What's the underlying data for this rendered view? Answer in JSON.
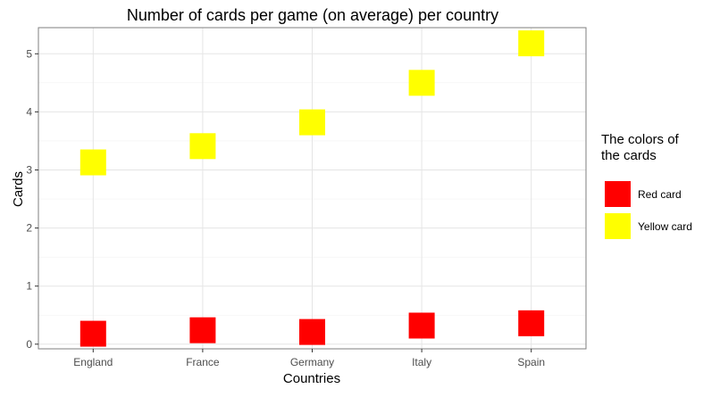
{
  "chart_data": {
    "type": "scatter",
    "title": "Number of cards per game (on average) per country",
    "xlabel": "Countries",
    "ylabel": "Cards",
    "categories": [
      "England",
      "France",
      "Germany",
      "Italy",
      "Spain"
    ],
    "ylim": [
      -0.08,
      5.45
    ],
    "yticks": [
      0,
      1,
      2,
      3,
      4,
      5
    ],
    "grid": true,
    "legend": {
      "title": "The colors of the cards",
      "title_lines": [
        "The colors of",
        "the cards"
      ],
      "position": "right"
    },
    "series": [
      {
        "name": "Red card",
        "color": "#ff0000",
        "values": [
          0.18,
          0.24,
          0.21,
          0.32,
          0.36
        ]
      },
      {
        "name": "Yellow card",
        "color": "#ffff00",
        "values": [
          3.13,
          3.41,
          3.82,
          4.5,
          5.18
        ]
      }
    ],
    "marker_shape": "square"
  }
}
